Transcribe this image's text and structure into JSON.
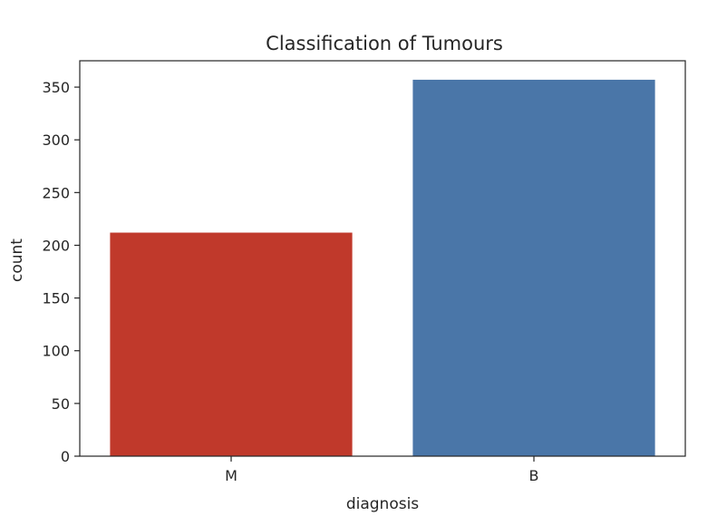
{
  "chart_data": {
    "type": "bar",
    "title": "Classification of Tumours",
    "xlabel": "diagnosis",
    "ylabel": "count",
    "categories": [
      "M",
      "B"
    ],
    "values": [
      212,
      357
    ],
    "colors": [
      "#c0392b",
      "#4a76a8"
    ],
    "ylim": [
      0,
      375
    ],
    "yticks": [
      0,
      50,
      100,
      150,
      200,
      250,
      300,
      350
    ],
    "grid": false
  }
}
